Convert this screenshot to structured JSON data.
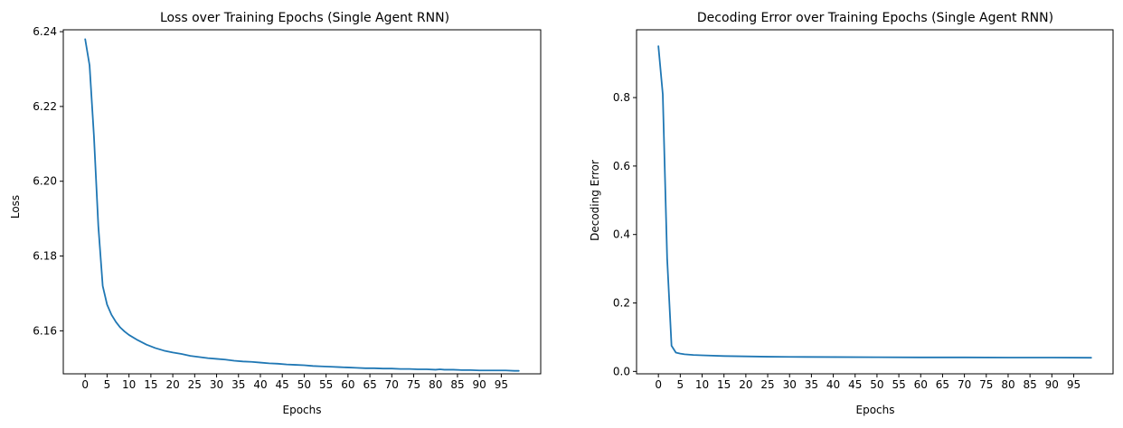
{
  "line_color": "#1f77b4",
  "chart_data": [
    {
      "type": "line",
      "title": "Loss over Training Epochs (Single Agent RNN)",
      "xlabel": "Epochs",
      "ylabel": "Loss",
      "xlim": [
        -5,
        104
      ],
      "ylim": [
        6.1485,
        6.2405
      ],
      "xticks": [
        0,
        5,
        10,
        15,
        20,
        25,
        30,
        35,
        40,
        45,
        50,
        55,
        60,
        65,
        70,
        75,
        80,
        85,
        90,
        95
      ],
      "yticks": [
        6.16,
        6.18,
        6.2,
        6.22,
        6.24
      ],
      "ytick_labels": [
        "6.16",
        "6.18",
        "6.20",
        "6.22",
        "6.24"
      ],
      "grid": false,
      "series": [
        {
          "x": [
            0,
            1,
            2,
            3,
            4,
            5,
            6,
            7,
            8,
            9,
            10,
            12,
            14,
            16,
            18,
            20,
            22,
            24,
            26,
            28,
            30,
            32,
            34,
            36,
            38,
            40,
            42,
            44,
            46,
            48,
            50,
            52,
            54,
            56,
            58,
            60,
            62,
            64,
            66,
            68,
            70,
            72,
            74,
            76,
            78,
            80,
            81,
            82,
            84,
            86,
            88,
            90,
            92,
            94,
            96,
            98,
            99
          ],
          "y": [
            6.238,
            6.231,
            6.212,
            6.188,
            6.172,
            6.167,
            6.1643,
            6.1624,
            6.1609,
            6.1598,
            6.1589,
            6.1575,
            6.1563,
            6.1554,
            6.1547,
            6.1542,
            6.1538,
            6.1533,
            6.153,
            6.1527,
            6.1525,
            6.1523,
            6.152,
            6.1518,
            6.1517,
            6.1515,
            6.1513,
            6.1512,
            6.151,
            6.1509,
            6.1508,
            6.1506,
            6.1505,
            6.1504,
            6.1503,
            6.1502,
            6.1501,
            6.15,
            6.15,
            6.1499,
            6.1499,
            6.1498,
            6.1498,
            6.1497,
            6.1497,
            6.1496,
            6.1497,
            6.1496,
            6.1496,
            6.1495,
            6.1495,
            6.1494,
            6.1494,
            6.1494,
            6.1494,
            6.1493,
            6.1493
          ]
        }
      ]
    },
    {
      "type": "line",
      "title": "Decoding Error over Training Epochs (Single Agent RNN)",
      "xlabel": "Epochs",
      "ylabel": "Decoding Error",
      "xlim": [
        -5,
        104
      ],
      "ylim": [
        -0.007,
        0.998
      ],
      "xticks": [
        0,
        5,
        10,
        15,
        20,
        25,
        30,
        35,
        40,
        45,
        50,
        55,
        60,
        65,
        70,
        75,
        80,
        85,
        90,
        95
      ],
      "yticks": [
        0.0,
        0.2,
        0.4,
        0.6,
        0.8
      ],
      "ytick_labels": [
        "0.0",
        "0.2",
        "0.4",
        "0.6",
        "0.8"
      ],
      "grid": false,
      "series": [
        {
          "x": [
            0,
            1,
            2,
            3,
            4,
            5,
            6,
            7,
            8,
            10,
            15,
            20,
            25,
            30,
            40,
            50,
            60,
            70,
            80,
            90,
            99
          ],
          "y": [
            0.95,
            0.81,
            0.33,
            0.075,
            0.055,
            0.052,
            0.05,
            0.049,
            0.048,
            0.047,
            0.045,
            0.044,
            0.043,
            0.0425,
            0.042,
            0.0415,
            0.041,
            0.041,
            0.0405,
            0.0405,
            0.04
          ]
        }
      ]
    }
  ]
}
